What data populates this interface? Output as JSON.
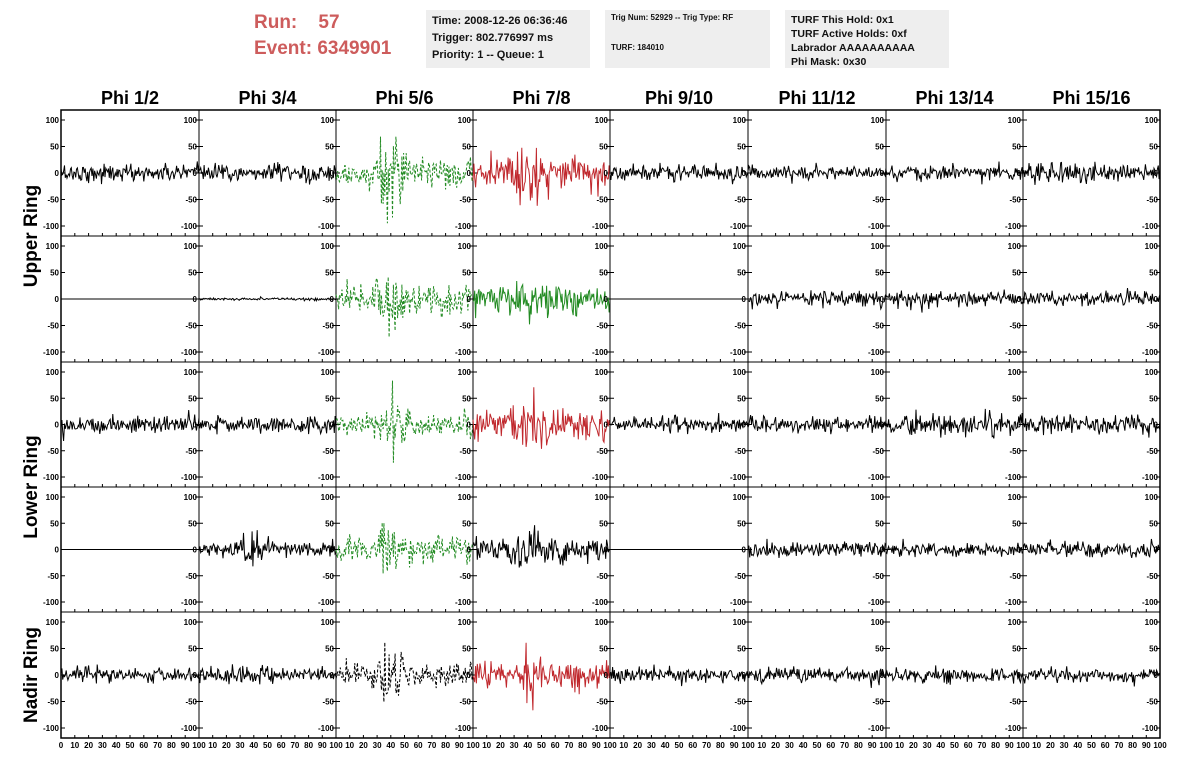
{
  "run": {
    "run_label": "Run:",
    "run_value": "57",
    "event_label": "Event:",
    "event_value": "6349901"
  },
  "info_panels": {
    "time": [
      "Time: 2008-12-26 06:36:46",
      "Trigger: 802.776997 ms",
      "Priority: 1 -- Queue: 1"
    ],
    "trigger": [
      "Trig Num: 52929 -- Trig Type: RF",
      "",
      "",
      "TURF: 184010"
    ],
    "turf": [
      "TURF This Hold: 0x1",
      "TURF Active Holds: 0xf",
      "Labrador AAAAAAAAAA",
      "Phi Mask: 0x30"
    ]
  },
  "colors": {
    "black": "#000000",
    "green": "#228b22",
    "red": "#c0282d",
    "title": "#cd5c5c",
    "panel_bg": "#eeeeee"
  },
  "chart_data": {
    "type": "line",
    "column_titles": [
      "Phi 1/2",
      "Phi 3/4",
      "Phi 5/6",
      "Phi 7/8",
      "Phi 9/10",
      "Phi 11/12",
      "Phi 13/14",
      "Phi 15/16"
    ],
    "row_group_labels": [
      "Upper Ring",
      "Lower Ring",
      "Nadir Ring"
    ],
    "xlim": [
      0,
      100
    ],
    "ylim": [
      -100,
      100
    ],
    "y_ticks": [
      100,
      50,
      0,
      -50,
      -100
    ],
    "x_ticks": [
      0,
      10,
      20,
      30,
      40,
      50,
      60,
      70,
      80,
      90,
      100
    ],
    "x_tick_labels": [
      "0",
      "10",
      "20",
      "30",
      "40",
      "50",
      "60",
      "70",
      "80",
      "90",
      "100"
    ],
    "rows": [
      [
        {
          "style": "black",
          "amp": 14,
          "burst": 0
        },
        {
          "style": "black",
          "amp": 15,
          "burst": 0
        },
        {
          "style": "green-dashed",
          "amp": 22,
          "burst": 60
        },
        {
          "style": "red",
          "amp": 25,
          "burst": 45
        },
        {
          "style": "black",
          "amp": 14,
          "burst": 0
        },
        {
          "style": "black",
          "amp": 10,
          "burst": 0
        },
        {
          "style": "black",
          "amp": 12,
          "burst": 0
        },
        {
          "style": "black",
          "amp": 15,
          "burst": 0
        }
      ],
      [
        {
          "style": "black-flat",
          "amp": 0,
          "burst": 0
        },
        {
          "style": "black",
          "amp": 2,
          "burst": 0
        },
        {
          "style": "green-dashed",
          "amp": 24,
          "burst": 50
        },
        {
          "style": "green",
          "amp": 22,
          "burst": 25
        },
        {
          "style": "black-flat",
          "amp": 0,
          "burst": 0
        },
        {
          "style": "black",
          "amp": 12,
          "burst": 0
        },
        {
          "style": "black",
          "amp": 12,
          "burst": 0
        },
        {
          "style": "black",
          "amp": 13,
          "burst": 0
        }
      ],
      [
        {
          "style": "black",
          "amp": 15,
          "burst": 0
        },
        {
          "style": "black",
          "amp": 13,
          "burst": 0
        },
        {
          "style": "green-dashed",
          "amp": 20,
          "burst": 45
        },
        {
          "style": "red",
          "amp": 25,
          "burst": 40
        },
        {
          "style": "black",
          "amp": 12,
          "burst": 0
        },
        {
          "style": "black",
          "amp": 12,
          "burst": 0
        },
        {
          "style": "black",
          "amp": 17,
          "burst": 0
        },
        {
          "style": "black",
          "amp": 14,
          "burst": 0
        }
      ],
      [
        {
          "style": "black-flat",
          "amp": 0,
          "burst": 0
        },
        {
          "style": "black",
          "amp": 12,
          "burst": 20
        },
        {
          "style": "green-dashed",
          "amp": 20,
          "burst": 50
        },
        {
          "style": "black",
          "amp": 20,
          "burst": 15
        },
        {
          "style": "black-flat",
          "amp": 0,
          "burst": 0
        },
        {
          "style": "black",
          "amp": 12,
          "burst": 0
        },
        {
          "style": "black",
          "amp": 12,
          "burst": 0
        },
        {
          "style": "black",
          "amp": 14,
          "burst": 0
        }
      ],
      [
        {
          "style": "black",
          "amp": 12,
          "burst": 0
        },
        {
          "style": "black",
          "amp": 12,
          "burst": 0
        },
        {
          "style": "black-dashed",
          "amp": 18,
          "burst": 35
        },
        {
          "style": "red",
          "amp": 22,
          "burst": 35
        },
        {
          "style": "black",
          "amp": 12,
          "burst": 0
        },
        {
          "style": "black",
          "amp": 12,
          "burst": 0
        },
        {
          "style": "black",
          "amp": 12,
          "burst": 0
        },
        {
          "style": "black",
          "amp": 12,
          "burst": 0
        }
      ]
    ]
  }
}
